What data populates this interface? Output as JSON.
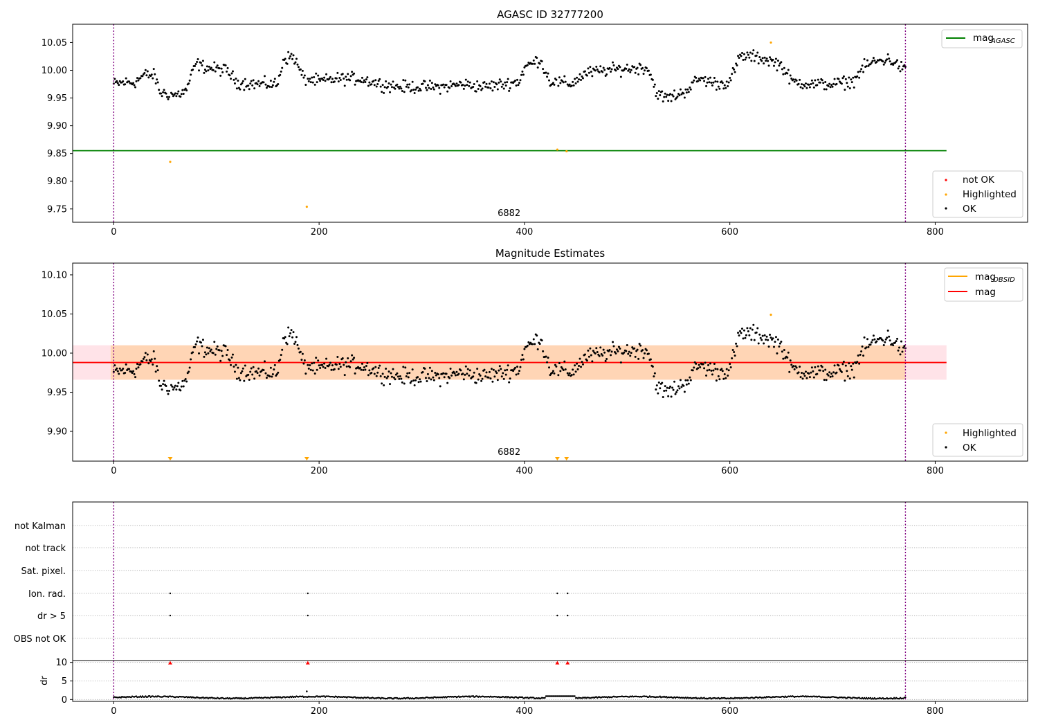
{
  "chart_data": [
    {
      "id": "agasc",
      "type": "scatter",
      "title": "AGASC ID 32777200",
      "xlim": [
        -40,
        890
      ],
      "ylim": [
        9.726,
        10.083
      ],
      "xticks": [
        0,
        200,
        400,
        600,
        800
      ],
      "yticks": [
        9.75,
        9.8,
        9.85,
        9.9,
        9.95,
        10.0,
        10.05
      ],
      "ytick_labels": [
        "9.75",
        "9.80",
        "9.85",
        "9.90",
        "9.95",
        "10.00",
        "10.05"
      ],
      "obs_label": "6882",
      "obs_label_x": 385,
      "obs_boundaries": [
        0,
        771
      ],
      "reference_line": {
        "name": "mag_AGASC",
        "value": 9.855,
        "x_range": [
          -40,
          811
        ],
        "color": "#008000"
      },
      "legend_top": [
        {
          "label": "mag",
          "sub": "AGASC",
          "color": "#008000"
        }
      ],
      "legend_bottom": [
        {
          "label": "not OK",
          "color": "#ff0000"
        },
        {
          "label": "Highlighted",
          "color": "#ffa500"
        },
        {
          "label": "OK",
          "color": "#000000"
        }
      ],
      "highlighted": [
        [
          55,
          9.835
        ],
        [
          188,
          9.754
        ],
        [
          432,
          9.857
        ],
        [
          441,
          9.854
        ],
        [
          640,
          10.05
        ]
      ],
      "series_ok_trend": [
        [
          0,
          9.975
        ],
        [
          10,
          9.978
        ],
        [
          20,
          9.978
        ],
        [
          30,
          9.992
        ],
        [
          40,
          9.99
        ],
        [
          45,
          9.96
        ],
        [
          60,
          9.955
        ],
        [
          70,
          9.962
        ],
        [
          80,
          10.012
        ],
        [
          90,
          10.005
        ],
        [
          100,
          10.002
        ],
        [
          110,
          10.0
        ],
        [
          120,
          9.978
        ],
        [
          140,
          9.975
        ],
        [
          160,
          9.975
        ],
        [
          165,
          10.02
        ],
        [
          175,
          10.025
        ],
        [
          185,
          9.985
        ],
        [
          200,
          9.98
        ],
        [
          220,
          9.985
        ],
        [
          240,
          9.985
        ],
        [
          260,
          9.975
        ],
        [
          280,
          9.97
        ],
        [
          300,
          9.97
        ],
        [
          320,
          9.97
        ],
        [
          340,
          9.975
        ],
        [
          360,
          9.97
        ],
        [
          380,
          9.975
        ],
        [
          395,
          9.98
        ],
        [
          400,
          10.005
        ],
        [
          415,
          10.02
        ],
        [
          425,
          9.98
        ],
        [
          445,
          9.975
        ],
        [
          460,
          9.995
        ],
        [
          480,
          10.0
        ],
        [
          500,
          10.003
        ],
        [
          520,
          10.005
        ],
        [
          530,
          9.955
        ],
        [
          540,
          9.95
        ],
        [
          555,
          9.96
        ],
        [
          570,
          9.985
        ],
        [
          590,
          9.975
        ],
        [
          600,
          9.98
        ],
        [
          610,
          10.025
        ],
        [
          620,
          10.025
        ],
        [
          635,
          10.02
        ],
        [
          650,
          10.01
        ],
        [
          660,
          9.98
        ],
        [
          680,
          9.975
        ],
        [
          700,
          9.975
        ],
        [
          720,
          9.98
        ],
        [
          730,
          10.005
        ],
        [
          740,
          10.015
        ],
        [
          755,
          10.02
        ],
        [
          771,
          10.0
        ]
      ],
      "series_ok_amplitude": 0.012
    },
    {
      "id": "estimates",
      "type": "scatter",
      "title": "Magnitude Estimates",
      "xlim": [
        -40,
        890
      ],
      "ylim": [
        9.862,
        10.115
      ],
      "xticks": [
        0,
        200,
        400,
        600,
        800
      ],
      "yticks": [
        9.9,
        9.95,
        10.0,
        10.05,
        10.1
      ],
      "ytick_labels": [
        "9.90",
        "9.95",
        "10.00",
        "10.05",
        "10.10"
      ],
      "obs_label": "6882",
      "obs_label_x": 385,
      "obs_boundaries": [
        0,
        771
      ],
      "mag_line": {
        "value": 9.988,
        "x_range": [
          -40,
          811
        ],
        "color": "#ff0000"
      },
      "mag_band": {
        "low": 9.966,
        "high": 10.01,
        "x_range": [
          -40,
          811
        ],
        "color": "#ffc0cb"
      },
      "mag_obsid_band": {
        "low": 9.966,
        "high": 10.01,
        "x_range": [
          -3,
          771
        ],
        "color": "#ffa500"
      },
      "legend_top": [
        {
          "label": "mag",
          "sub": "OBSID",
          "color": "#ffa500"
        },
        {
          "label": "mag",
          "sub": "",
          "color": "#ff0000"
        }
      ],
      "legend_bottom": [
        {
          "label": "Highlighted",
          "color": "#ffa500"
        },
        {
          "label": "OK",
          "color": "#000000"
        }
      ],
      "highlighted": [
        [
          640,
          10.049
        ]
      ],
      "off_scale_markers": [
        55,
        188,
        432,
        441
      ]
    },
    {
      "id": "flags",
      "type": "scatter",
      "xlim": [
        -40,
        890
      ],
      "xticks": [
        0,
        200,
        400,
        600,
        800
      ],
      "categories": [
        "not Kalman",
        "not track",
        "Sat. pixel.",
        "Ion. rad.",
        "dr > 5",
        "OBS not OK"
      ],
      "flag_points": {
        "Ion. rad.": [
          55,
          189,
          432,
          442
        ],
        "dr > 5": [
          55,
          189,
          432,
          442
        ]
      },
      "obs_boundaries": [
        0,
        771
      ]
    },
    {
      "id": "dr",
      "type": "scatter",
      "ylabel": "dr",
      "xlim": [
        -40,
        890
      ],
      "ylim": [
        -0.5,
        10.5
      ],
      "xticks": [
        0,
        200,
        400,
        600,
        800
      ],
      "xtick_labels": [
        "0",
        "200",
        "400",
        "600",
        "800"
      ],
      "yticks": [
        0,
        5,
        10
      ],
      "ytick_labels": [
        "0",
        "5",
        "10"
      ],
      "above_limit_markers": [
        55,
        189,
        432,
        442
      ],
      "outlier": [
        [
          188,
          2.2
        ]
      ],
      "obs_boundaries": [
        0,
        771
      ]
    }
  ]
}
